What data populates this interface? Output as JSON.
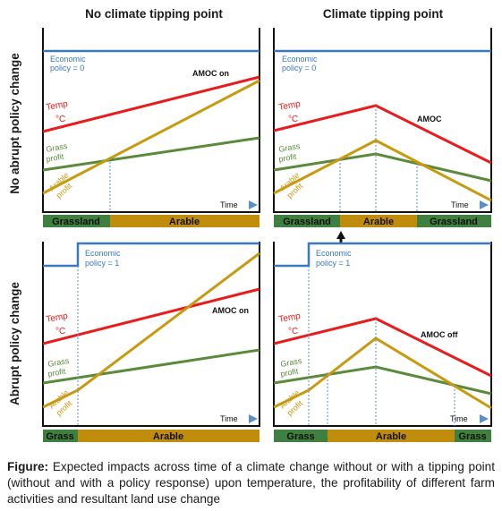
{
  "columns": [
    "No climate tipping point",
    "Climate tipping point"
  ],
  "rows": [
    "No abrupt policy change",
    "Abrupt policy change"
  ],
  "series_labels": {
    "temp": "Temp",
    "temp_unit": "°C",
    "grass": [
      "Grass",
      "profit"
    ],
    "arable": [
      "Arable",
      "profit"
    ],
    "time": "Time"
  },
  "policy_labels": {
    "p0": [
      "Economic",
      "policy = 0"
    ],
    "p1": [
      "Economic",
      "policy = 1"
    ]
  },
  "amoc_labels": {
    "tl": "AMOC on",
    "tr": "AMOC",
    "bl": "AMOC on",
    "br": "AMOC off"
  },
  "land_use": {
    "tl": [
      "Grassland",
      "Arable"
    ],
    "tr": [
      "Grassland",
      "Arable",
      "Grassland"
    ],
    "bl": [
      "Grass",
      "Arable"
    ],
    "br": [
      "Grass",
      "Arable",
      "Grass"
    ]
  },
  "colors": {
    "policy": "#3a78c0",
    "temp": "#e81c1c",
    "grass": "#5a8a3a",
    "arable": "#c89a10",
    "grass_bar": "#3f7f3f",
    "arable_bar": "#c08c0c",
    "dashed": "#5a8fc8"
  },
  "caption": {
    "label": "Figure:",
    "text": " Expected impacts across time of a climate change without or with a tipping point (without and with a policy response) upon temperature, the profitability of different farm activities and resultant land use change"
  }
}
